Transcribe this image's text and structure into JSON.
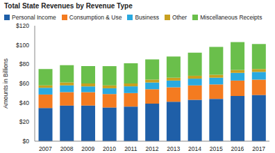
{
  "chart_data": {
    "type": "bar",
    "title": "Total State Revenues by Revenue Type",
    "y_label": "Amounts in Billions",
    "stacked": true,
    "grid": false,
    "legend": "top",
    "categories": [
      "2007",
      "2008",
      "2009",
      "2010",
      "2011",
      "2012",
      "2013",
      "2014",
      "2015",
      "2016",
      "2017"
    ],
    "series": [
      {
        "name": "Personal Income",
        "color": "#1f5fa8",
        "values": [
          34.5,
          37,
          37,
          35,
          36,
          39,
          41,
          43,
          44,
          47,
          48
        ]
      },
      {
        "name": "Consumption & Use",
        "color": "#f47b20",
        "values": [
          14,
          14,
          14,
          14,
          14,
          15,
          15,
          15,
          15,
          16,
          16
        ]
      },
      {
        "name": "Business",
        "color": "#29a9e0",
        "values": [
          7,
          7,
          6,
          6,
          7,
          7,
          7,
          7,
          7,
          8,
          8
        ]
      },
      {
        "name": "Other",
        "color": "#c8a020",
        "values": [
          2.5,
          3,
          3,
          3,
          3,
          3,
          3,
          3,
          3,
          3,
          3
        ]
      },
      {
        "name": "Miscellaneous Receipts",
        "color": "#6abf4b",
        "values": [
          17,
          18,
          18,
          20,
          21,
          21,
          22,
          24,
          29,
          29,
          26
        ]
      }
    ],
    "ylim": [
      0,
      120
    ],
    "yticks": [
      {
        "value": 0,
        "label": "$0"
      },
      {
        "value": 20,
        "label": "$20"
      },
      {
        "value": 40,
        "label": "$40"
      },
      {
        "value": 60,
        "label": "$60"
      },
      {
        "value": 80,
        "label": "$80"
      },
      {
        "value": 100,
        "label": "$100"
      },
      {
        "value": 120,
        "label": "$120"
      }
    ]
  }
}
